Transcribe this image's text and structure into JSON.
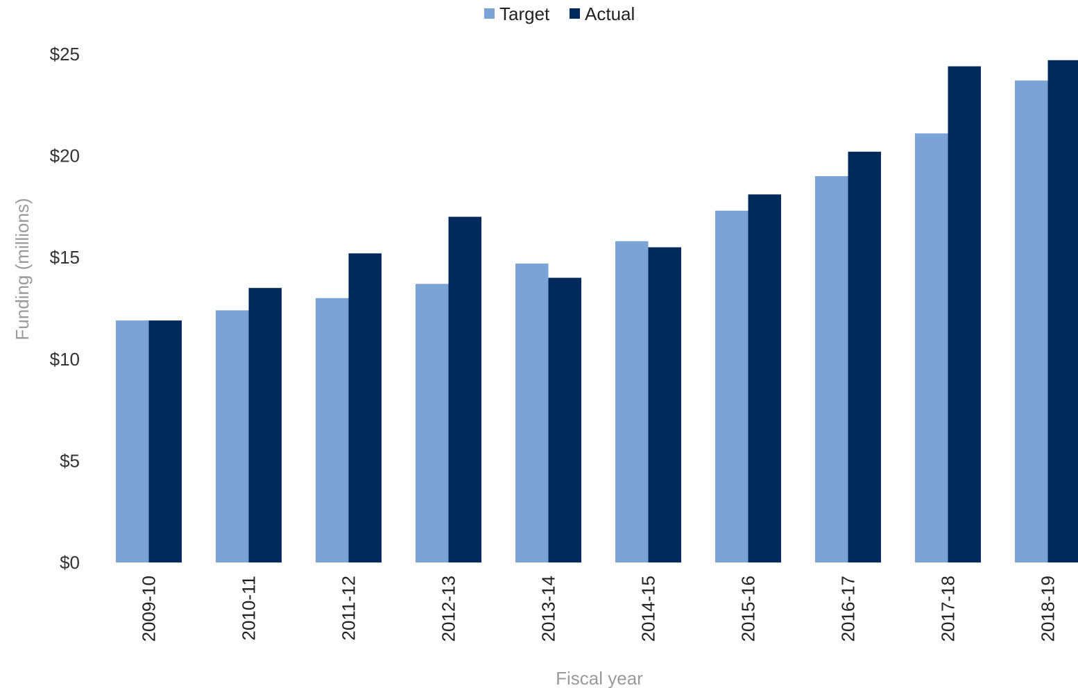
{
  "chart_data": {
    "type": "bar",
    "categories": [
      "2009-10",
      "2010-11",
      "2011-12",
      "2012-13",
      "2013-14",
      "2014-15",
      "2015-16",
      "2016-17",
      "2017-18",
      "2018-19"
    ],
    "series": [
      {
        "name": "Target",
        "color": "#7ba3d6",
        "values": [
          11.9,
          12.4,
          13.0,
          13.7,
          14.7,
          15.8,
          17.3,
          19.0,
          21.1,
          23.7
        ]
      },
      {
        "name": "Actual",
        "color": "#012a5c",
        "values": [
          11.9,
          13.5,
          15.2,
          17.0,
          14.0,
          15.5,
          18.1,
          20.2,
          24.4,
          24.7
        ]
      }
    ],
    "title": "",
    "xlabel": "Fiscal year",
    "ylabel": "Funding (millions)",
    "ylim": [
      0,
      25
    ],
    "yticks": [
      0,
      5,
      10,
      15,
      20,
      25
    ],
    "ytick_labels": [
      "$0",
      "$5",
      "$10",
      "$15",
      "$20",
      "$25"
    ],
    "grid": false,
    "legend_position": "top-center"
  }
}
